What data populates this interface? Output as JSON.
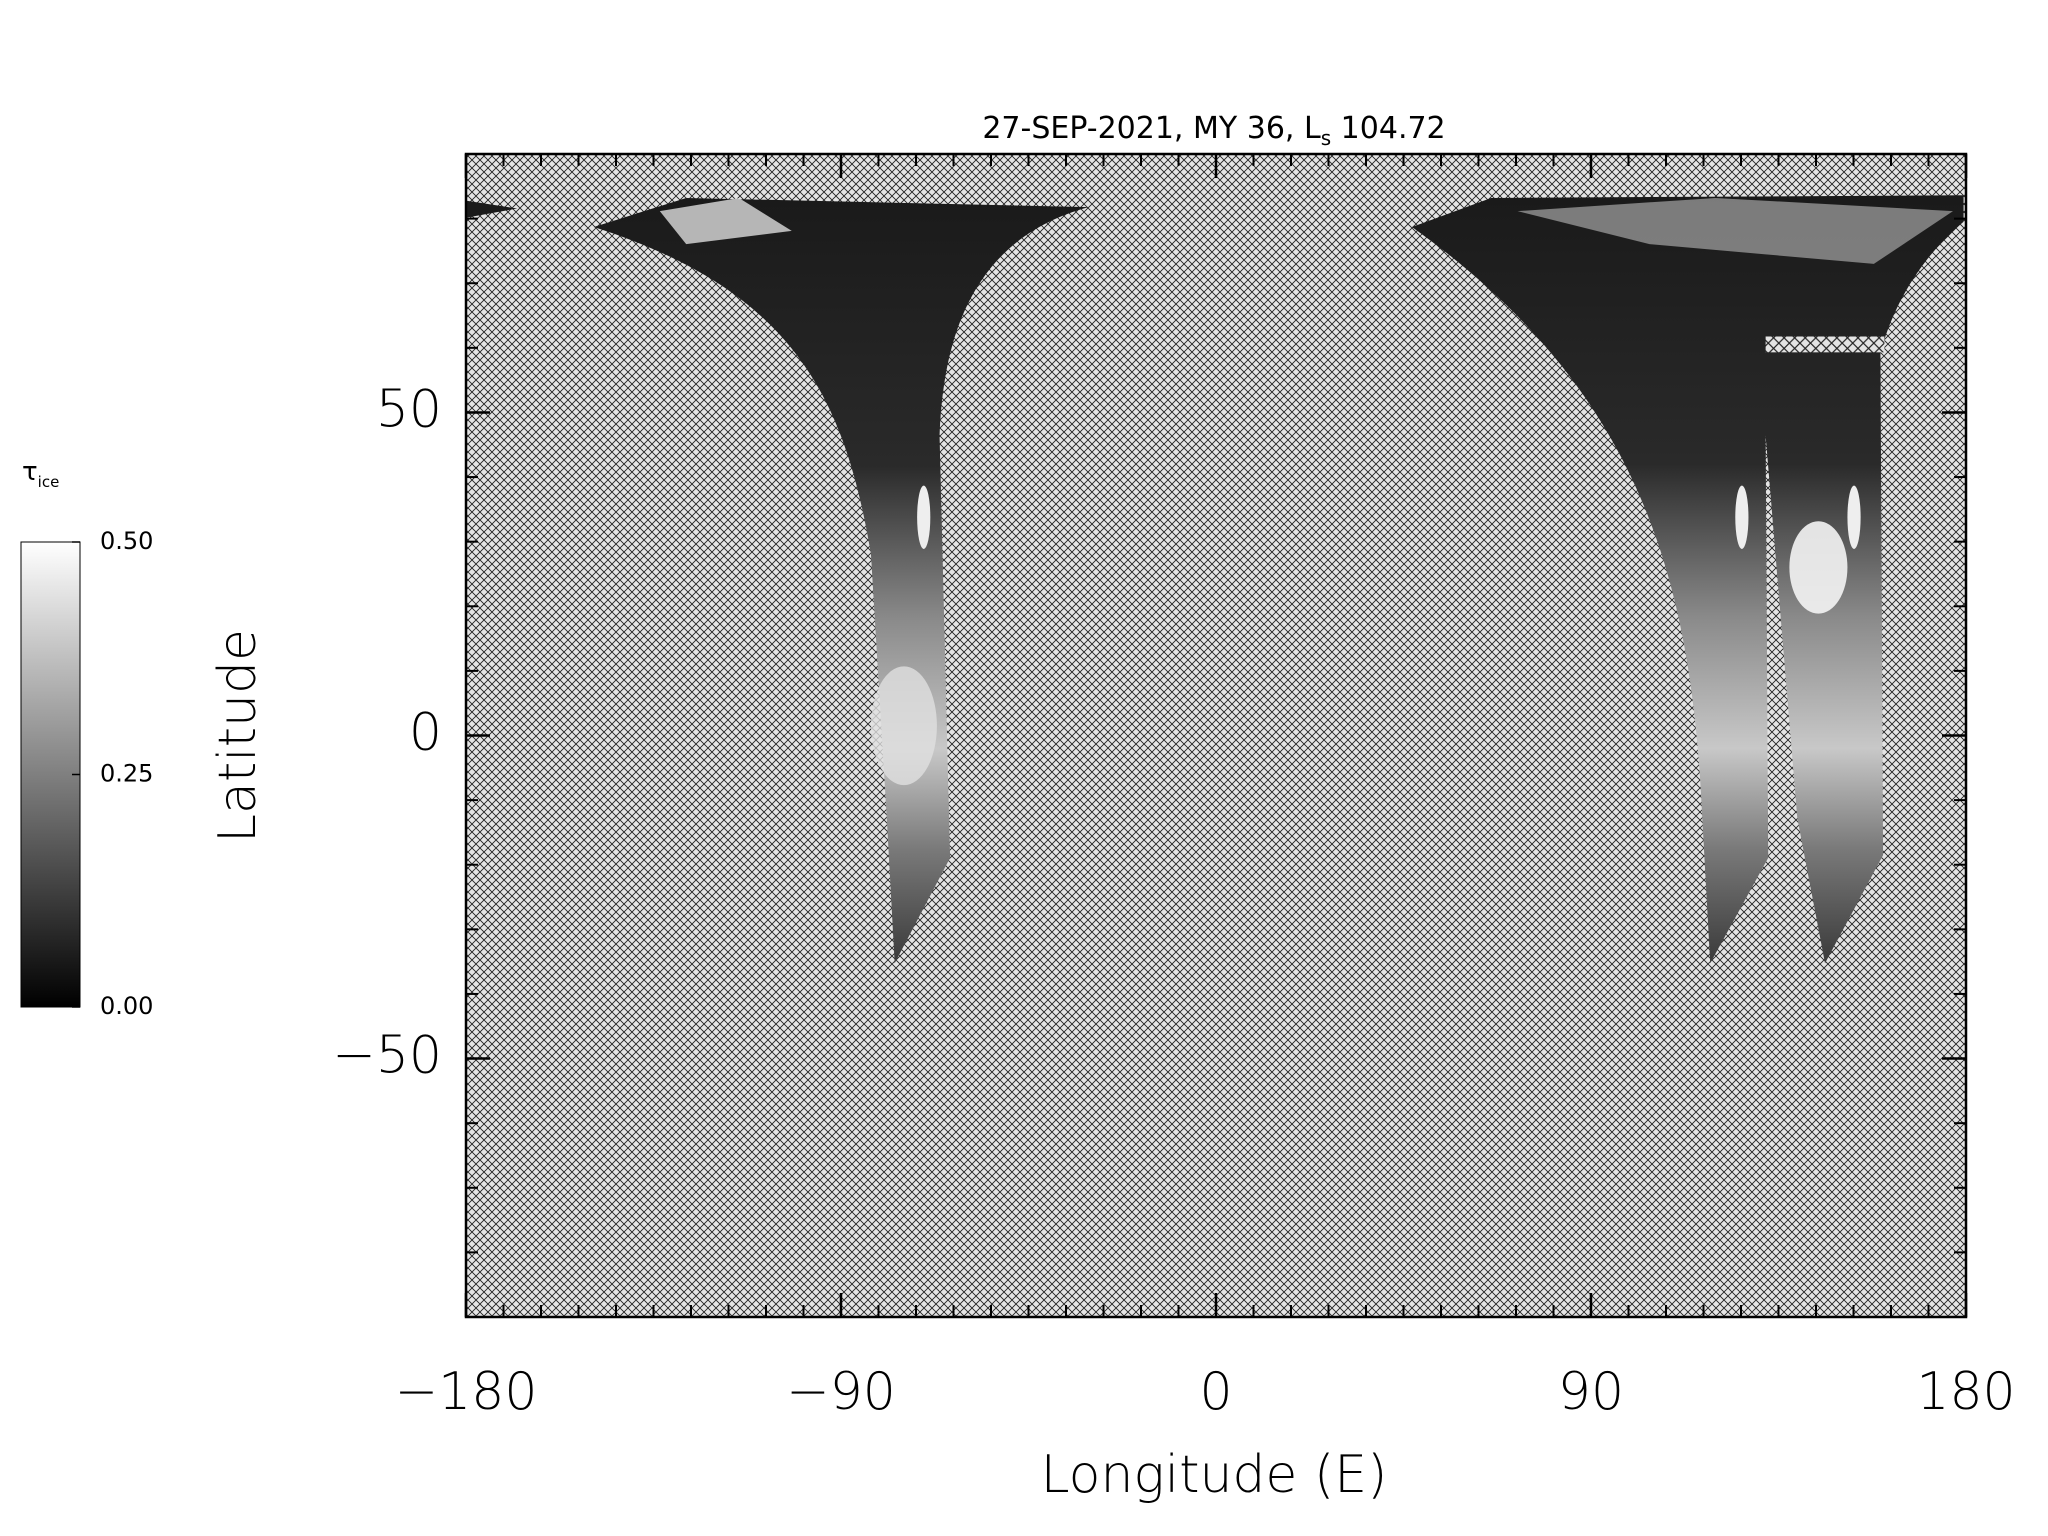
{
  "chart_data": {
    "type": "map",
    "title": "27-SEP-2021, MY 36,  L",
    "title_subscript": "s",
    "title_suffix": " 104.72",
    "x_label": "Longitude (E)",
    "y_label": "Latitude",
    "xlim": [
      -180,
      180
    ],
    "ylim": [
      -90,
      90
    ],
    "xticks": [
      {
        "value": -180,
        "label": "−180"
      },
      {
        "value": -90,
        "label": "−90"
      },
      0,
      90,
      180
    ],
    "yticks": [
      {
        "value": -50,
        "label": "−50"
      },
      0,
      50
    ],
    "colorbar": {
      "label": "τ",
      "label_subscript": "ice",
      "lim": [
        0,
        0.5
      ],
      "ticks": [
        {
          "value": 0,
          "label": "0.00"
        },
        {
          "value": 0.25,
          "label": "0.25"
        },
        {
          "value": 0.5,
          "label": "0.50"
        }
      ],
      "colors": [
        "#000000",
        "#ffffff"
      ]
    }
  }
}
